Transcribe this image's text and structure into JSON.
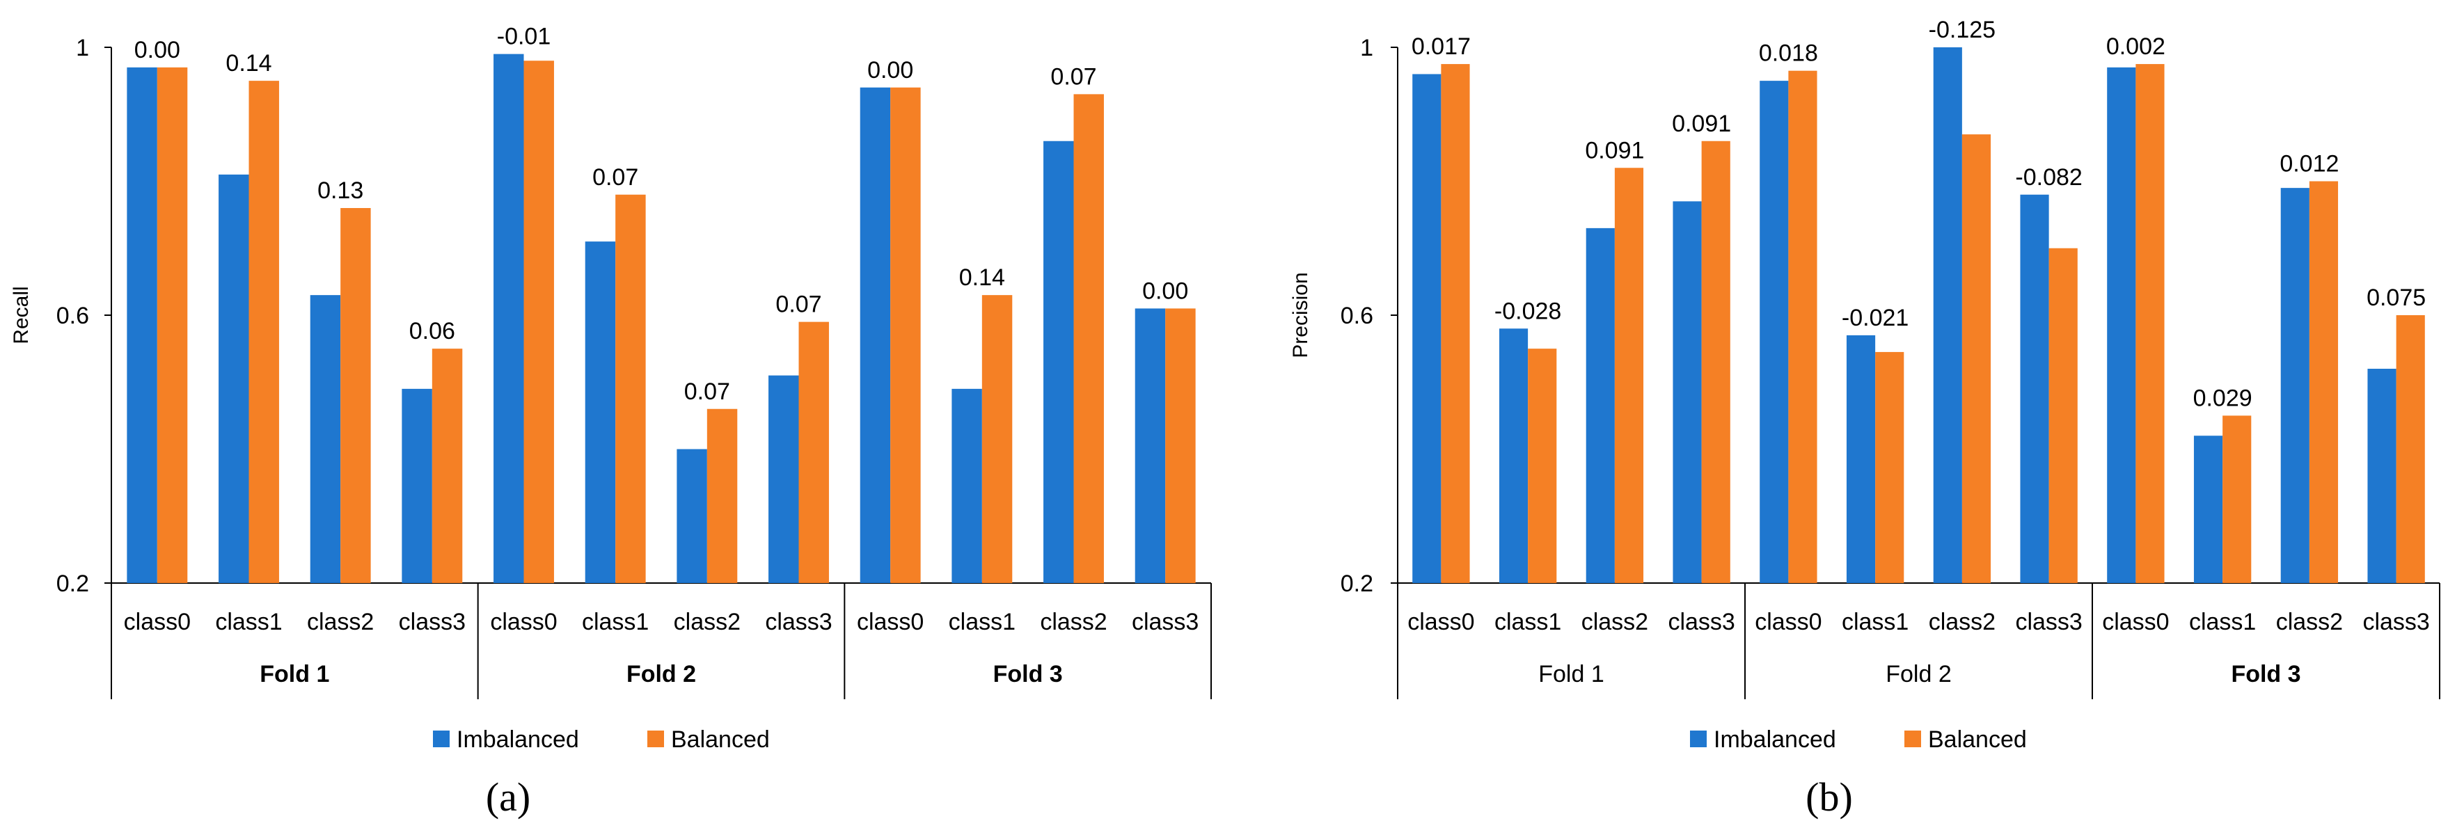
{
  "colors": {
    "imbalanced": "#1F77CF",
    "balanced": "#F58025"
  },
  "chart_data": [
    {
      "type": "bar",
      "panel_label": "(a)",
      "ylabel": "Recall",
      "ylim": [
        0.2,
        1.0
      ],
      "yticks": [
        "0.2",
        "0.6",
        "1"
      ],
      "ytick_values": [
        0.2,
        0.6,
        1.0
      ],
      "legend": [
        "Imbalanced",
        "Balanced"
      ],
      "legend_position": "bottom",
      "groups": [
        {
          "name": "Fold 1",
          "bold": true,
          "categories": [
            "class0",
            "class1",
            "class2",
            "class3"
          ]
        },
        {
          "name": "Fold 2",
          "bold": true,
          "categories": [
            "class0",
            "class1",
            "class2",
            "class3"
          ]
        },
        {
          "name": "Fold 3",
          "bold": true,
          "categories": [
            "class0",
            "class1",
            "class2",
            "class3"
          ]
        }
      ],
      "series": [
        {
          "name": "Imbalanced",
          "values": [
            0.97,
            0.81,
            0.63,
            0.49,
            0.99,
            0.71,
            0.4,
            0.51,
            0.94,
            0.49,
            0.86,
            0.61
          ]
        },
        {
          "name": "Balanced",
          "values": [
            0.97,
            0.95,
            0.76,
            0.55,
            0.98,
            0.78,
            0.46,
            0.59,
            0.94,
            0.63,
            0.93,
            0.61
          ]
        }
      ],
      "data_labels": [
        "0.00",
        "0.14",
        "0.13",
        "0.06",
        "-0.01",
        "0.07",
        "0.07",
        "0.07",
        "0.00",
        "0.14",
        "0.07",
        "0.00"
      ]
    },
    {
      "type": "bar",
      "panel_label": "(b)",
      "ylabel": "Precision",
      "ylim": [
        0.2,
        1.0
      ],
      "yticks": [
        "0.2",
        "0.6",
        "1"
      ],
      "ytick_values": [
        0.2,
        0.6,
        1.0
      ],
      "legend": [
        "Imbalanced",
        "Balanced"
      ],
      "legend_position": "bottom",
      "groups": [
        {
          "name": "Fold 1",
          "bold": false,
          "categories": [
            "class0",
            "class1",
            "class2",
            "class3"
          ]
        },
        {
          "name": "Fold 2",
          "bold": false,
          "categories": [
            "class0",
            "class1",
            "class2",
            "class3"
          ]
        },
        {
          "name": "Fold 3",
          "bold": true,
          "categories": [
            "class0",
            "class1",
            "class2",
            "class3"
          ]
        }
      ],
      "series": [
        {
          "name": "Imbalanced",
          "values": [
            0.96,
            0.58,
            0.73,
            0.77,
            0.95,
            0.57,
            1.0,
            0.78,
            0.97,
            0.42,
            0.79,
            0.52
          ]
        },
        {
          "name": "Balanced",
          "values": [
            0.975,
            0.55,
            0.82,
            0.86,
            0.965,
            0.545,
            0.87,
            0.7,
            0.975,
            0.45,
            0.8,
            0.6
          ]
        }
      ],
      "data_labels": [
        "0.017",
        "-0.028",
        "0.091",
        "0.091",
        "0.018",
        "-0.021",
        "-0.125",
        "-0.082",
        "0.002",
        "0.029",
        "0.012",
        "0.075"
      ]
    }
  ]
}
